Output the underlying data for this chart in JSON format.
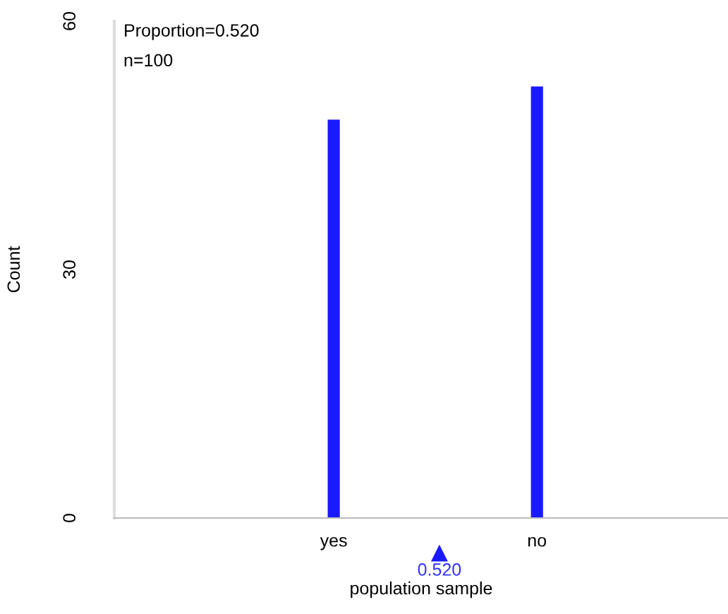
{
  "chart_data": {
    "type": "bar",
    "xlabel": "population sample",
    "ylabel": "Count",
    "categories": [
      "yes",
      "no"
    ],
    "values": [
      48,
      52
    ],
    "color": "#1a1aff",
    "ylim": [
      0,
      60
    ],
    "yticks": [
      0,
      30,
      60
    ],
    "grid": false,
    "annotations": [
      "Proportion=0.520",
      "n=100",
      "0.520"
    ]
  }
}
